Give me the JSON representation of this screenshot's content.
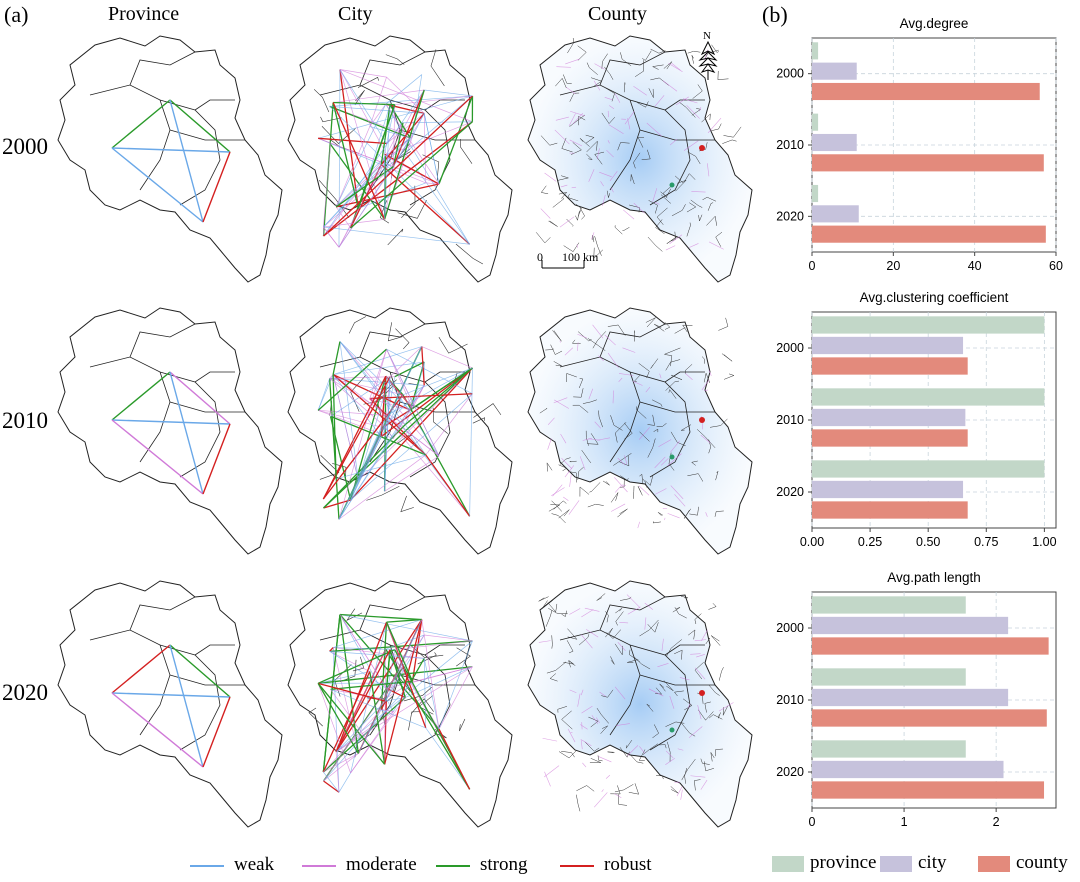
{
  "panel_labels": {
    "a": "(a)",
    "b": "(b)"
  },
  "map_columns": [
    "Province",
    "City",
    "County"
  ],
  "map_years": [
    "2000",
    "2010",
    "2020"
  ],
  "scale_bar": {
    "zero": "0",
    "dist": "100 km"
  },
  "north_label": "N",
  "map_legend": [
    {
      "label": "weak",
      "color": "#6aa8e8"
    },
    {
      "label": "moderate",
      "color": "#d07ad8"
    },
    {
      "label": "strong",
      "color": "#2a9a2a"
    },
    {
      "label": "robust",
      "color": "#d42020"
    }
  ],
  "map_network_strength": {
    "Province": [
      "weak-dominant",
      "weak/moderate",
      "robust/strong"
    ]
  },
  "bar_legend": [
    {
      "label": "province",
      "color": "#c2d7c8"
    },
    {
      "label": "city",
      "color": "#c6c2dc"
    },
    {
      "label": "county",
      "color": "#e38a7c"
    }
  ],
  "chart_data": [
    {
      "type": "bar",
      "orientation": "horizontal",
      "title": "Avg.degree",
      "categories": [
        "2000",
        "2010",
        "2020"
      ],
      "series": [
        {
          "name": "province",
          "values": [
            1.5,
            1.5,
            1.5
          ]
        },
        {
          "name": "city",
          "values": [
            11,
            11,
            11.5
          ]
        },
        {
          "name": "county",
          "values": [
            56,
            57,
            57.5
          ]
        }
      ],
      "xlim": [
        0,
        60
      ],
      "xticks": [
        0,
        20,
        40,
        60
      ],
      "xtick_labels": [
        "0",
        "20",
        "40",
        "60"
      ]
    },
    {
      "type": "bar",
      "orientation": "horizontal",
      "title": "Avg.clustering coefficient",
      "categories": [
        "2000",
        "2010",
        "2020"
      ],
      "series": [
        {
          "name": "province",
          "values": [
            1.0,
            1.0,
            1.0
          ]
        },
        {
          "name": "city",
          "values": [
            0.65,
            0.66,
            0.65
          ]
        },
        {
          "name": "county",
          "values": [
            0.67,
            0.67,
            0.67
          ]
        }
      ],
      "xlim": [
        0,
        1.05
      ],
      "xticks": [
        0,
        0.25,
        0.5,
        0.75,
        1.0
      ],
      "xtick_labels": [
        "0.00",
        "0.25",
        "0.50",
        "0.75",
        "1.00"
      ]
    },
    {
      "type": "bar",
      "orientation": "horizontal",
      "title": "Avg.path length",
      "categories": [
        "2000",
        "2010",
        "2020"
      ],
      "series": [
        {
          "name": "province",
          "values": [
            1.67,
            1.67,
            1.67
          ]
        },
        {
          "name": "city",
          "values": [
            2.13,
            2.13,
            2.08
          ]
        },
        {
          "name": "county",
          "values": [
            2.57,
            2.55,
            2.52
          ]
        }
      ],
      "xlim": [
        0,
        2.65
      ],
      "xticks": [
        0,
        1,
        2
      ],
      "xtick_labels": [
        "0",
        "1",
        "2"
      ]
    }
  ]
}
